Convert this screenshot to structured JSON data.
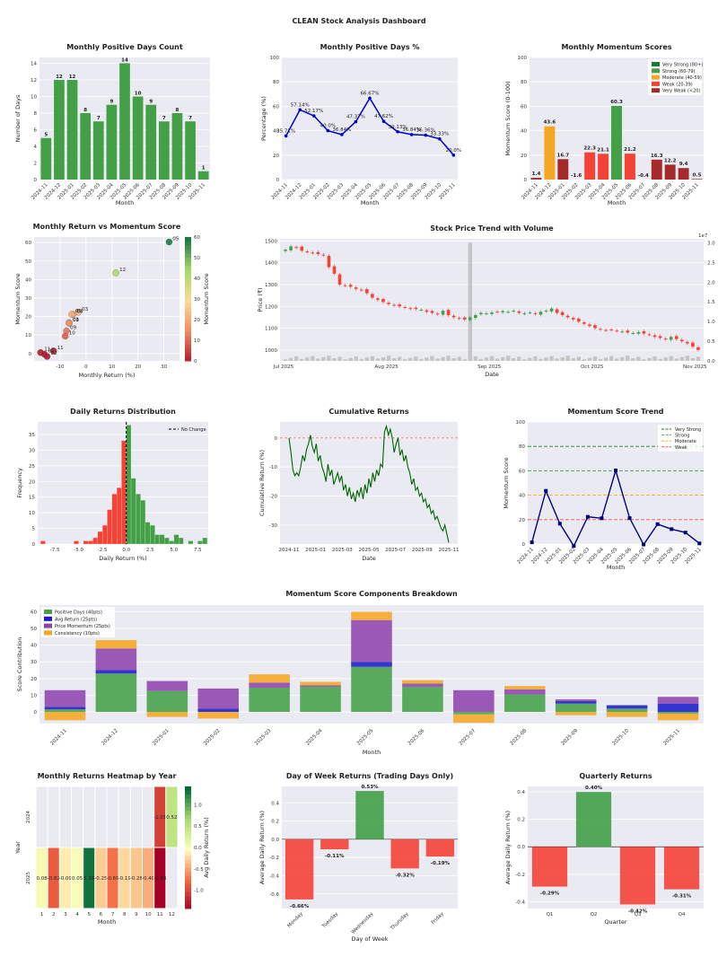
{
  "title": "CLEAN Stock Analysis Dashboard",
  "colors": {
    "green": "#43a047",
    "red": "#f44336",
    "darkred": "#a52a2a",
    "orange": "#f5a623",
    "darkgreen": "#1b7a2b",
    "blue": "#1a1acc",
    "navy": "#000080",
    "purple": "#8e44ad",
    "bg": "#eaeaf2"
  },
  "months": [
    "2024-11",
    "2024-12",
    "2025-01",
    "2025-02",
    "2025-03",
    "2025-04",
    "2025-05",
    "2025-06",
    "2025-07",
    "2025-08",
    "2025-09",
    "2025-10",
    "2025-11"
  ],
  "chart_data": [
    {
      "id": "pos_days",
      "type": "bar",
      "title": "Monthly Positive Days Count",
      "xlabel": "Month",
      "ylabel": "Number of Days",
      "categories": [
        "2024-11",
        "2024-12",
        "2025-01",
        "2025-02",
        "2025-03",
        "2025-04",
        "2025-05",
        "2025-06",
        "2025-07",
        "2025-08",
        "2025-09",
        "2025-10",
        "2025-11"
      ],
      "values": [
        5,
        12,
        12,
        8,
        7,
        9,
        14,
        10,
        9,
        7,
        8,
        7,
        1
      ],
      "ylim": [
        0,
        14.7
      ],
      "yticks": [
        0,
        2,
        4,
        6,
        8,
        10,
        12,
        14
      ]
    },
    {
      "id": "pos_pct",
      "type": "line",
      "title": "Monthly Positive Days %",
      "xlabel": "Month",
      "ylabel": "Percentage (%)",
      "categories": [
        "2024-11",
        "2024-12",
        "2025-01",
        "2025-02",
        "2025-03",
        "2025-04",
        "2025-05",
        "2025-06",
        "2025-07",
        "2025-08",
        "2025-09",
        "2025-10",
        "2025-11"
      ],
      "values": [
        35.71,
        57.14,
        52.17,
        40.0,
        36.84,
        47.37,
        66.67,
        47.62,
        39.13,
        36.84,
        36.36,
        33.33,
        20.0
      ],
      "labels": [
        "35.71%",
        "57.14%",
        "52.17%",
        "40.0%",
        "36.84%",
        "47.37%",
        "66.67%",
        "47.62%",
        "39.13%",
        "36.84%",
        "36.36%",
        "33.33%",
        "20.0%"
      ],
      "ylim": [
        0,
        100
      ],
      "yticks": [
        0,
        20,
        40,
        60,
        80,
        100
      ]
    },
    {
      "id": "momentum",
      "type": "bar",
      "title": "Monthly Momentum Scores",
      "xlabel": "Month",
      "ylabel": "Momentum Score (0-100)",
      "categories": [
        "2024-11",
        "2024-12",
        "2025-01",
        "2025-02",
        "2025-03",
        "2025-04",
        "2025-05",
        "2025-06",
        "2025-07",
        "2025-08",
        "2025-09",
        "2025-10",
        "2025-11"
      ],
      "values": [
        1.4,
        43.6,
        16.7,
        -1.6,
        22.3,
        21.1,
        60.3,
        21.2,
        -0.4,
        16.3,
        12.2,
        9.4,
        0.5
      ],
      "labels": [
        "1.4",
        "43.6",
        "16.7",
        "-1.6",
        "22.3",
        "21.1",
        "60.3",
        "21.2",
        "-0.4",
        "16.3",
        "12.2",
        "9.4",
        "0.5"
      ],
      "ylim": [
        0,
        100
      ],
      "yticks": [
        0,
        20,
        40,
        60,
        80,
        100
      ],
      "legend": [
        "Very Strong (80+)",
        "Strong (60-79)",
        "Moderate (40-59)",
        "Weak (20-39)",
        "Very Weak (<20)"
      ]
    },
    {
      "id": "scatter",
      "type": "scatter",
      "title": "Monthly Return vs Momentum Score",
      "xlabel": "Monthly Return (%)",
      "ylabel": "Momentum Score",
      "colorbar_label": "Momentum Score",
      "points": [
        {
          "x": -12.5,
          "y": 1.4,
          "label": "11"
        },
        {
          "x": 11.5,
          "y": 43.6,
          "label": "12"
        },
        {
          "x": -6.5,
          "y": 16.7,
          "label": "01"
        },
        {
          "x": -15,
          "y": -1.6,
          "label": "02"
        },
        {
          "x": -3,
          "y": 22.3,
          "label": "03"
        },
        {
          "x": -5,
          "y": 21.1,
          "label": "04"
        },
        {
          "x": 32,
          "y": 60.3,
          "label": "05"
        },
        {
          "x": -5.5,
          "y": 21.2,
          "label": "06"
        },
        {
          "x": -16,
          "y": -0.4,
          "label": "07"
        },
        {
          "x": -6.5,
          "y": 16.3,
          "label": "08"
        },
        {
          "x": -7.5,
          "y": 12.2,
          "label": "09"
        },
        {
          "x": -8,
          "y": 9.4,
          "label": "10"
        },
        {
          "x": -17.5,
          "y": 0.5,
          "label": "11"
        }
      ],
      "xlim": [
        -20,
        36
      ],
      "ylim": [
        -4,
        63
      ],
      "xticks": [
        -10,
        0,
        10,
        20,
        30
      ],
      "yticks": [
        0,
        10,
        20,
        30,
        40,
        50,
        60
      ],
      "cbar_ticks": [
        0,
        10,
        20,
        30,
        40,
        50,
        60
      ]
    },
    {
      "id": "price",
      "type": "candlestick",
      "title": "Stock Price Trend with Volume",
      "xlabel": "Date",
      "ylabel": "Price (₹)",
      "volume_scale": "1e7",
      "xticks": [
        "Jul 2025",
        "Aug 2025",
        "Sep 2025",
        "Oct 2025",
        "Nov 2025"
      ],
      "yticks": [
        1000,
        1100,
        1200,
        1300,
        1400,
        1500
      ],
      "vticks": [
        0,
        0.5,
        1.0,
        1.5,
        2.0,
        2.5,
        3.0
      ],
      "ylim": [
        950,
        1510
      ],
      "closes": [
        1460,
        1475,
        1470,
        1455,
        1450,
        1445,
        1440,
        1435,
        1380,
        1350,
        1300,
        1295,
        1290,
        1280,
        1275,
        1260,
        1240,
        1230,
        1220,
        1210,
        1205,
        1200,
        1195,
        1190,
        1188,
        1185,
        1175,
        1170,
        1165,
        1180,
        1160,
        1150,
        1145,
        1140,
        1150,
        1160,
        1170,
        1168,
        1172,
        1175,
        1178,
        1175,
        1180,
        1170,
        1168,
        1172,
        1165,
        1175,
        1180,
        1190,
        1170,
        1160,
        1150,
        1140,
        1130,
        1120,
        1110,
        1100,
        1095,
        1090,
        1092,
        1088,
        1085,
        1080,
        1078,
        1082,
        1075,
        1070,
        1060,
        1055,
        1050,
        1060,
        1050,
        1040,
        1030,
        1015,
        1000
      ]
    },
    {
      "id": "returns_hist",
      "type": "bar",
      "title": "Daily Returns Distribution",
      "xlabel": "Daily Return (%)",
      "ylabel": "Frequency",
      "legend": [
        "No Change"
      ],
      "bins": [
        -8.75,
        -8.25,
        -7.75,
        -7.25,
        -6.75,
        -6.25,
        -5.75,
        -5.25,
        -4.75,
        -4.25,
        -3.75,
        -3.25,
        -2.75,
        -2.25,
        -1.75,
        -1.25,
        -0.75,
        -0.25,
        0.25,
        0.75,
        1.25,
        1.75,
        2.25,
        2.75,
        3.25,
        3.75,
        4.25,
        4.75,
        5.25,
        5.75,
        6.25,
        6.75,
        7.25,
        7.75,
        8.25
      ],
      "values": [
        1,
        0,
        0,
        0,
        0,
        0,
        0,
        1,
        0,
        1,
        1,
        2,
        4,
        6,
        11,
        16,
        18,
        33,
        38,
        21,
        16,
        14,
        7,
        6,
        3,
        3,
        2,
        1,
        3,
        2,
        0,
        1,
        0,
        1,
        2
      ],
      "xlim": [
        -9.3,
        8.6
      ],
      "ylim": [
        0,
        39
      ],
      "xticks": [
        -7.5,
        -5.0,
        -2.5,
        0.0,
        2.5,
        5.0,
        7.5
      ],
      "yticks": [
        0,
        5,
        10,
        15,
        20,
        25,
        30,
        35
      ]
    },
    {
      "id": "cumret",
      "type": "line",
      "title": "Cumulative Returns",
      "xlabel": "Date",
      "ylabel": "Cumulative Return (%)",
      "xticks": [
        "2024-11",
        "2025-01",
        "2025-03",
        "2025-05",
        "2025-07",
        "2025-09",
        "2025-11"
      ],
      "yticks": [
        -30,
        -20,
        -10,
        0
      ],
      "ylim": [
        -36.5,
        5.5
      ],
      "values": [
        0,
        -5,
        -11,
        -13,
        -12,
        -13,
        -10,
        -6,
        -8,
        -4,
        -2,
        1,
        -3,
        -5,
        -2,
        -8,
        -6,
        -10,
        -12,
        -15,
        -9,
        -13,
        -11,
        -16,
        -14,
        -12,
        -15,
        -13,
        -18,
        -16,
        -20,
        -17,
        -21,
        -19,
        -22,
        -18,
        -20,
        -17,
        -21,
        -16,
        -19,
        -14,
        -17,
        -12,
        -15,
        -11,
        -13,
        -9,
        -10,
        2,
        4,
        1,
        3,
        0,
        -5,
        -2,
        0,
        -6,
        -4,
        -8,
        -6,
        -10,
        -12,
        -16,
        -14,
        -18,
        -17,
        -20,
        -19,
        -22,
        -21,
        -24,
        -23,
        -26,
        -25,
        -28,
        -27,
        -29,
        -31,
        -32,
        -30,
        -33,
        -36
      ]
    },
    {
      "id": "mom_trend",
      "type": "line",
      "title": "Momentum Score Trend",
      "xlabel": "Month",
      "ylabel": "Momentum Score",
      "categories": [
        "2024-11",
        "2024-12",
        "2025-01",
        "2025-02",
        "2025-03",
        "2025-04",
        "2025-05",
        "2025-06",
        "2025-07",
        "2025-08",
        "2025-09",
        "2025-10",
        "2025-11"
      ],
      "values": [
        1.4,
        43.6,
        16.7,
        -1.6,
        22.3,
        21.1,
        60.3,
        21.2,
        -0.4,
        16.3,
        12.2,
        9.4,
        0.5
      ],
      "ylim": [
        0,
        100
      ],
      "yticks": [
        0,
        20,
        40,
        60,
        80,
        100
      ],
      "thresholds": [
        {
          "name": "Very Strong",
          "y": 80
        },
        {
          "name": "Strong",
          "y": 60
        },
        {
          "name": "Moderate",
          "y": 40
        },
        {
          "name": "Weak",
          "y": 20
        }
      ]
    },
    {
      "id": "components",
      "type": "bar",
      "title": "Momentum Score Components Breakdown",
      "xlabel": "Month",
      "ylabel": "Score Contribution",
      "categories": [
        "2024-11",
        "2024-12",
        "2025-01",
        "2025-02",
        "2025-03",
        "2025-04",
        "2025-05",
        "2025-06",
        "2025-07",
        "2025-08",
        "2025-09",
        "2025-10",
        "2025-11"
      ],
      "series": [
        {
          "name": "Positive Days (40pts)",
          "values": [
            1.5,
            23,
            12.5,
            0,
            14.5,
            15,
            27,
            15,
            -1.5,
            10.5,
            5,
            2,
            -1
          ]
        },
        {
          "name": "Avg Return (25pts)",
          "values": [
            1.5,
            2,
            0,
            2,
            0,
            0,
            3,
            0,
            0,
            0,
            1.5,
            2,
            5
          ]
        },
        {
          "name": "Price Momentum (25pts)",
          "values": [
            10,
            13,
            6,
            12,
            3,
            1,
            25,
            2,
            13,
            3,
            1,
            0,
            4
          ]
        },
        {
          "name": "Consistency (10pts)",
          "values": [
            -5,
            5,
            -3,
            -4,
            5,
            2,
            5,
            2,
            -5,
            2,
            -2,
            -3,
            -4
          ]
        }
      ],
      "ylim": [
        -7,
        64
      ],
      "yticks": [
        0,
        10,
        20,
        30,
        40,
        50,
        60
      ]
    },
    {
      "id": "heatmap",
      "type": "heatmap",
      "title": "Monthly Returns Heatmap by Year",
      "xlabel": "Month",
      "ylabel": "Year",
      "colorbar_label": "Avg Daily Return (%)",
      "years": [
        "2024",
        "2025"
      ],
      "months": [
        "1",
        "2",
        "3",
        "4",
        "5",
        "6",
        "7",
        "8",
        "9",
        "10",
        "11",
        "12"
      ],
      "cells": [
        {
          "year": "2024",
          "month": "11",
          "value": -1.01,
          "label": "-1.01"
        },
        {
          "year": "2024",
          "month": "12",
          "value": 0.52,
          "label": "0.52"
        },
        {
          "year": "2025",
          "month": "1",
          "value": 0.08,
          "label": "0.08"
        },
        {
          "year": "2025",
          "month": "2",
          "value": -0.82,
          "label": "-0.82"
        },
        {
          "year": "2025",
          "month": "3",
          "value": -0.09,
          "label": "-0.09"
        },
        {
          "year": "2025",
          "month": "4",
          "value": 0.05,
          "label": "0.05"
        },
        {
          "year": "2025",
          "month": "5",
          "value": 1.36,
          "label": "1.36"
        },
        {
          "year": "2025",
          "month": "6",
          "value": -0.25,
          "label": "-0.25"
        },
        {
          "year": "2025",
          "month": "7",
          "value": -0.69,
          "label": "-0.69"
        },
        {
          "year": "2025",
          "month": "8",
          "value": -0.19,
          "label": "-0.19"
        },
        {
          "year": "2025",
          "month": "9",
          "value": -0.28,
          "label": "-0.28"
        },
        {
          "year": "2025",
          "month": "10",
          "value": -0.4,
          "label": "-0.40"
        },
        {
          "year": "2025",
          "month": "11",
          "value": -1.43,
          "label": "-1.43"
        }
      ],
      "cbar_ticks": [
        -1.0,
        -0.5,
        0.0,
        0.5,
        1.0
      ],
      "cbar_labels": [
        "-1.0",
        "-0.5",
        "0.0",
        "0.5",
        "1.0"
      ]
    },
    {
      "id": "dow",
      "type": "bar",
      "title": "Day of Week Returns (Trading Days Only)",
      "xlabel": "Day of Week",
      "ylabel": "Average Daily Return (%)",
      "categories": [
        "Monday",
        "Tuesday",
        "Wednesday",
        "Thursday",
        "Friday"
      ],
      "values": [
        -0.66,
        -0.11,
        0.53,
        -0.32,
        -0.19
      ],
      "labels": [
        "-0.66%",
        "-0.11%",
        "0.53%",
        "-0.32%",
        "-0.19%"
      ],
      "ylim": [
        -0.76,
        0.58
      ],
      "yticks": [
        -0.6,
        -0.4,
        -0.2,
        0.0,
        0.2,
        0.4
      ]
    },
    {
      "id": "quarterly",
      "type": "bar",
      "title": "Quarterly Returns",
      "xlabel": "Quarter",
      "ylabel": "Average Daily Return (%)",
      "categories": [
        "Q1",
        "Q2",
        "Q3",
        "Q4"
      ],
      "values": [
        -0.29,
        0.4,
        -0.42,
        -0.31
      ],
      "labels": [
        "-0.29%",
        "0.40%",
        "-0.42%",
        "-0.31%"
      ],
      "ylim": [
        -0.45,
        0.44
      ],
      "yticks": [
        -0.4,
        -0.2,
        0.0,
        0.2,
        0.4
      ]
    }
  ]
}
